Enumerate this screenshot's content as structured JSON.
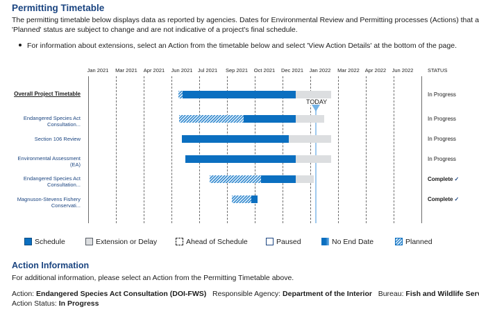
{
  "page": {
    "title": "Permitting Timetable",
    "description_line1": "The permitting timetable below displays data as reported by agencies. Dates for Environmental Review and Permitting processes (Actions) that are in 'Paused' or",
    "description_line2": "'Planned' status are subject to change and are not indicative of a project's final schedule.",
    "bullet": "For information about extensions, select an Action from the timetable below and select 'View Action Details' at the bottom of the page."
  },
  "timeline": {
    "months": [
      "Jan 2021",
      "Mar 2021",
      "Apr 2021",
      "Jun 2021",
      "Jul 2021",
      "Sep 2021",
      "Oct 2021",
      "Dec 2021",
      "Jan 2022",
      "Mar 2022",
      "Apr 2022",
      "Jun 2022"
    ],
    "status_header": "STATUS",
    "today_label": "TODAY",
    "rows": [
      {
        "label": "Overall Project Timetable",
        "status": "In Progress",
        "complete": false
      },
      {
        "label_line1": "Endangered Species Act",
        "label_line2": "Consultation...",
        "status": "In Progress",
        "complete": false
      },
      {
        "label": "Section 106 Review",
        "status": "In Progress",
        "complete": false
      },
      {
        "label_line1": "Environmental Assessment",
        "label_line2": "(EA)",
        "status": "In Progress",
        "complete": false
      },
      {
        "label_line1": "Endangered Species Act",
        "label_line2": "Consultation...",
        "status": "Complete",
        "complete": true
      },
      {
        "label_line1": "Magnuson-Stevens Fishery",
        "label_line2": "Conservati...",
        "status": "Complete",
        "complete": true
      }
    ]
  },
  "legend": {
    "schedule": "Schedule",
    "extension": "Extension or Delay",
    "ahead": "Ahead of Schedule",
    "paused": "Paused",
    "no_end": "No End Date",
    "planned": "Planned"
  },
  "action_info": {
    "title": "Action Information",
    "instruction": "For additional information, please select an Action from the Permitting Timetable above.",
    "action_label": "Action:",
    "action_value": "Endangered Species Act Consultation (DOI-FWS)",
    "agency_label": "Responsible Agency:",
    "agency_value": "Department of the Interior",
    "bureau_label": "Bureau:",
    "bureau_value": "Fish and Wildlife Service",
    "status_label": "Action Status:",
    "status_value": "In Progress"
  },
  "colors": {
    "schedule": "#0b6fc0",
    "extension": "#dcdee0",
    "title": "#1a4480",
    "today": "#73b3e7"
  }
}
